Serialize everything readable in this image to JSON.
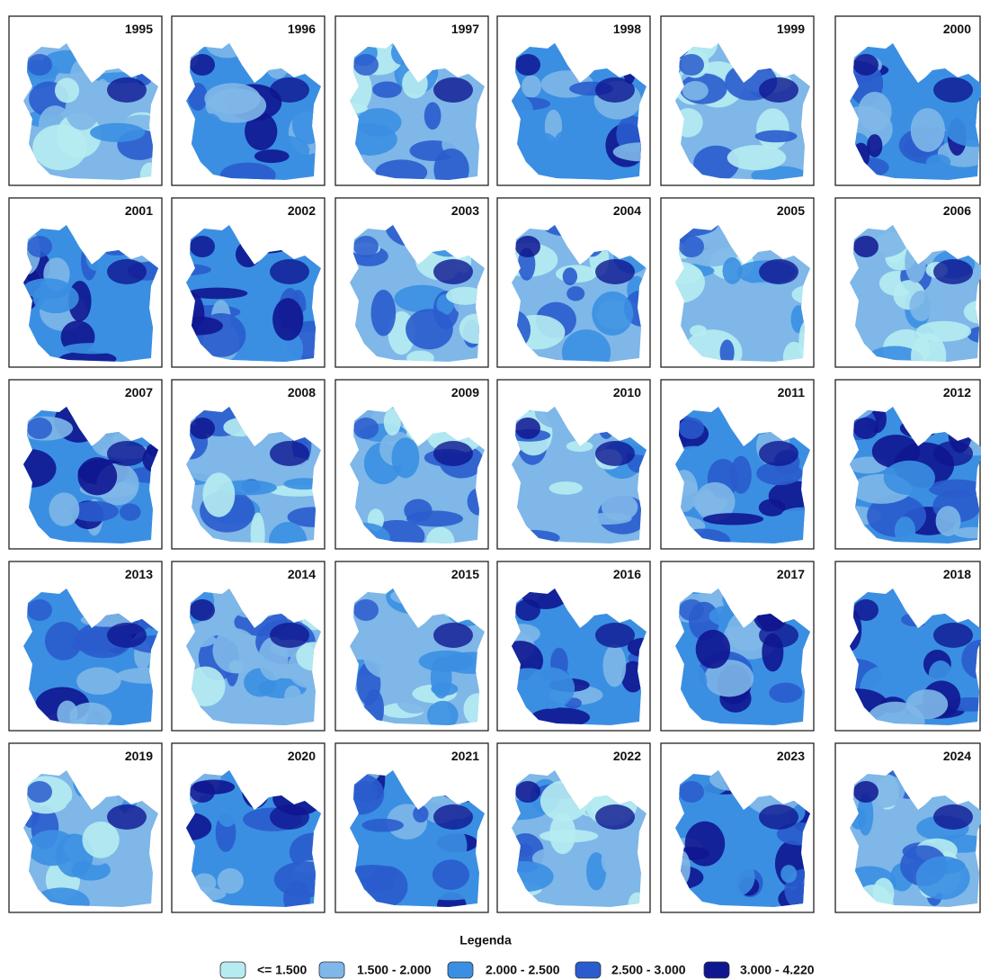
{
  "years": [
    "1995",
    "1996",
    "1997",
    "1998",
    "1999",
    "2000",
    "2001",
    "2002",
    "2003",
    "2004",
    "2005",
    "2006",
    "2007",
    "2008",
    "2009",
    "2010",
    "2011",
    "2012",
    "2013",
    "2014",
    "2015",
    "2016",
    "2017",
    "2018",
    "2019",
    "2020",
    "2021",
    "2022",
    "2023",
    "2024"
  ],
  "legend": {
    "title": "Legenda",
    "items": [
      {
        "label": "<= 1.500",
        "color": "#b6ecf1"
      },
      {
        "label": "1.500 - 2.000",
        "color": "#7eb7e8"
      },
      {
        "label": "2.000 - 2.500",
        "color": "#3b8fe2"
      },
      {
        "label": "2.500 - 3.000",
        "color": "#2a5ccd"
      },
      {
        "label": "3.000 - 4.220",
        "color": "#0f1690"
      }
    ]
  }
}
